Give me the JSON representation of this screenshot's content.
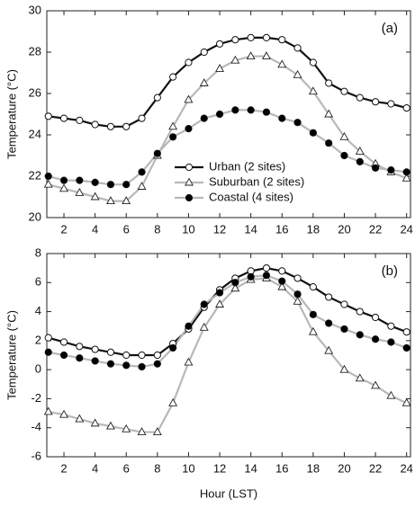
{
  "chart_data": [
    {
      "type": "line",
      "ylabel": "Temperature (°C)",
      "annotation": "(a)",
      "x": [
        1,
        2,
        3,
        4,
        5,
        6,
        7,
        8,
        9,
        10,
        11,
        12,
        13,
        14,
        15,
        16,
        17,
        18,
        19,
        20,
        21,
        22,
        23,
        24
      ],
      "xlim": [
        0.9,
        24.25
      ],
      "xticks": [
        2,
        4,
        6,
        8,
        10,
        12,
        14,
        16,
        18,
        20,
        22,
        24
      ],
      "ylim": [
        20,
        30
      ],
      "yticks": [
        20,
        22,
        24,
        26,
        28,
        30
      ],
      "legend": "lower center",
      "series": [
        {
          "name": "Urban (2 sites)",
          "color": "#111111",
          "marker": "circle",
          "marker_fill": "#ffffff",
          "values": [
            24.9,
            24.8,
            24.7,
            24.5,
            24.4,
            24.4,
            24.8,
            25.8,
            26.8,
            27.5,
            28.0,
            28.4,
            28.6,
            28.7,
            28.7,
            28.6,
            28.2,
            27.5,
            26.5,
            26.1,
            25.8,
            25.6,
            25.5,
            25.3
          ]
        },
        {
          "name": "Suburban (2 sites)",
          "color": "#b8b8b8",
          "marker": "triangle",
          "marker_fill": "#ffffff",
          "values": [
            21.6,
            21.4,
            21.2,
            21.0,
            20.8,
            20.8,
            21.5,
            23.0,
            24.4,
            25.7,
            26.5,
            27.2,
            27.6,
            27.8,
            27.8,
            27.4,
            26.9,
            26.1,
            25.0,
            23.9,
            23.2,
            22.6,
            22.2,
            21.9
          ]
        },
        {
          "name": "Coastal (4 sites)",
          "color": "#b8b8b8",
          "marker": "circle",
          "marker_fill": "#000000",
          "values": [
            22.0,
            21.8,
            21.8,
            21.7,
            21.6,
            21.6,
            22.2,
            23.1,
            23.9,
            24.3,
            24.8,
            25.0,
            25.2,
            25.2,
            25.1,
            24.8,
            24.6,
            24.1,
            23.6,
            23.0,
            22.7,
            22.4,
            22.3,
            22.2
          ]
        }
      ]
    },
    {
      "type": "line",
      "ylabel": "Temperature (°C)",
      "xlabel": "Hour (LST)",
      "annotation": "(b)",
      "x": [
        1,
        2,
        3,
        4,
        5,
        6,
        7,
        8,
        9,
        10,
        11,
        12,
        13,
        14,
        15,
        16,
        17,
        18,
        19,
        20,
        21,
        22,
        23,
        24
      ],
      "xlim": [
        0.9,
        24.25
      ],
      "xticks": [
        2,
        4,
        6,
        8,
        10,
        12,
        14,
        16,
        18,
        20,
        22,
        24
      ],
      "ylim": [
        -6,
        8
      ],
      "yticks": [
        -6,
        -4,
        -2,
        0,
        2,
        4,
        6,
        8
      ],
      "series": [
        {
          "color": "#111111",
          "marker": "circle",
          "marker_fill": "#ffffff",
          "values": [
            2.2,
            1.9,
            1.6,
            1.4,
            1.2,
            1.0,
            1.0,
            1.0,
            1.8,
            2.8,
            4.3,
            5.5,
            6.3,
            6.8,
            7.0,
            6.8,
            6.3,
            5.7,
            5.0,
            4.5,
            4.0,
            3.6,
            3.0,
            2.6
          ]
        },
        {
          "color": "#b8b8b8",
          "marker": "triangle",
          "marker_fill": "#ffffff",
          "values": [
            -2.9,
            -3.1,
            -3.4,
            -3.7,
            -3.9,
            -4.1,
            -4.3,
            -4.3,
            -2.3,
            0.5,
            2.9,
            4.5,
            5.6,
            6.2,
            6.3,
            5.7,
            4.7,
            2.6,
            1.3,
            0.0,
            -0.6,
            -1.1,
            -1.8,
            -2.3
          ]
        },
        {
          "color": "#b8b8b8",
          "marker": "circle",
          "marker_fill": "#000000",
          "values": [
            1.2,
            1.0,
            0.8,
            0.6,
            0.4,
            0.3,
            0.2,
            0.4,
            1.5,
            3.0,
            4.5,
            5.3,
            6.0,
            6.4,
            6.5,
            6.1,
            5.2,
            3.8,
            3.2,
            2.8,
            2.4,
            2.1,
            1.9,
            1.5
          ]
        }
      ]
    }
  ]
}
